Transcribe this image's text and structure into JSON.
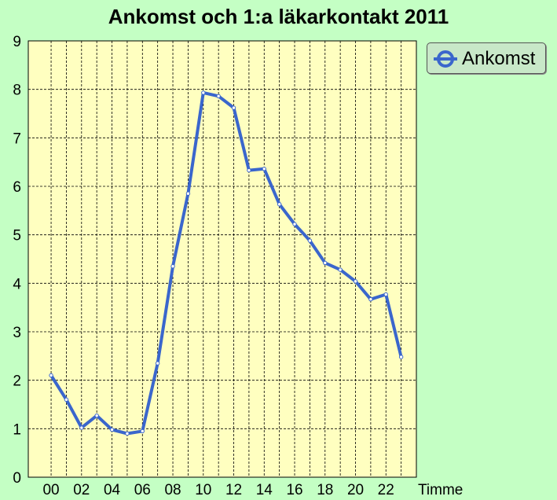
{
  "chart_data": {
    "type": "line",
    "title": "Ankomst och 1:a läkarkontakt 2011",
    "xlabel": "Timme",
    "ylabel": "",
    "x": [
      0,
      1,
      2,
      3,
      4,
      5,
      6,
      7,
      8,
      9,
      10,
      11,
      12,
      13,
      14,
      15,
      16,
      17,
      18,
      19,
      20,
      21,
      22,
      23
    ],
    "x_tick_labels": [
      "00",
      "02",
      "04",
      "06",
      "08",
      "10",
      "12",
      "14",
      "16",
      "18",
      "20",
      "22"
    ],
    "y_tick_labels": [
      "0",
      "1",
      "2",
      "3",
      "4",
      "5",
      "6",
      "7",
      "8",
      "9"
    ],
    "ylim": [
      0,
      9
    ],
    "grid": true,
    "legend": "top-right",
    "series": [
      {
        "name": "Ankomst",
        "color": "#3a66cc",
        "values": [
          2.1,
          1.6,
          1.02,
          1.27,
          0.98,
          0.9,
          0.95,
          2.35,
          4.35,
          5.85,
          7.93,
          7.86,
          7.62,
          6.33,
          6.36,
          5.63,
          5.22,
          4.88,
          4.42,
          4.28,
          4.04,
          3.67,
          3.77,
          2.48
        ]
      }
    ],
    "colors": {
      "background": "#c4ffc4",
      "plot_background": "#ffffc0",
      "grid": "#000000",
      "legend_background": "#c8e8c8"
    }
  }
}
